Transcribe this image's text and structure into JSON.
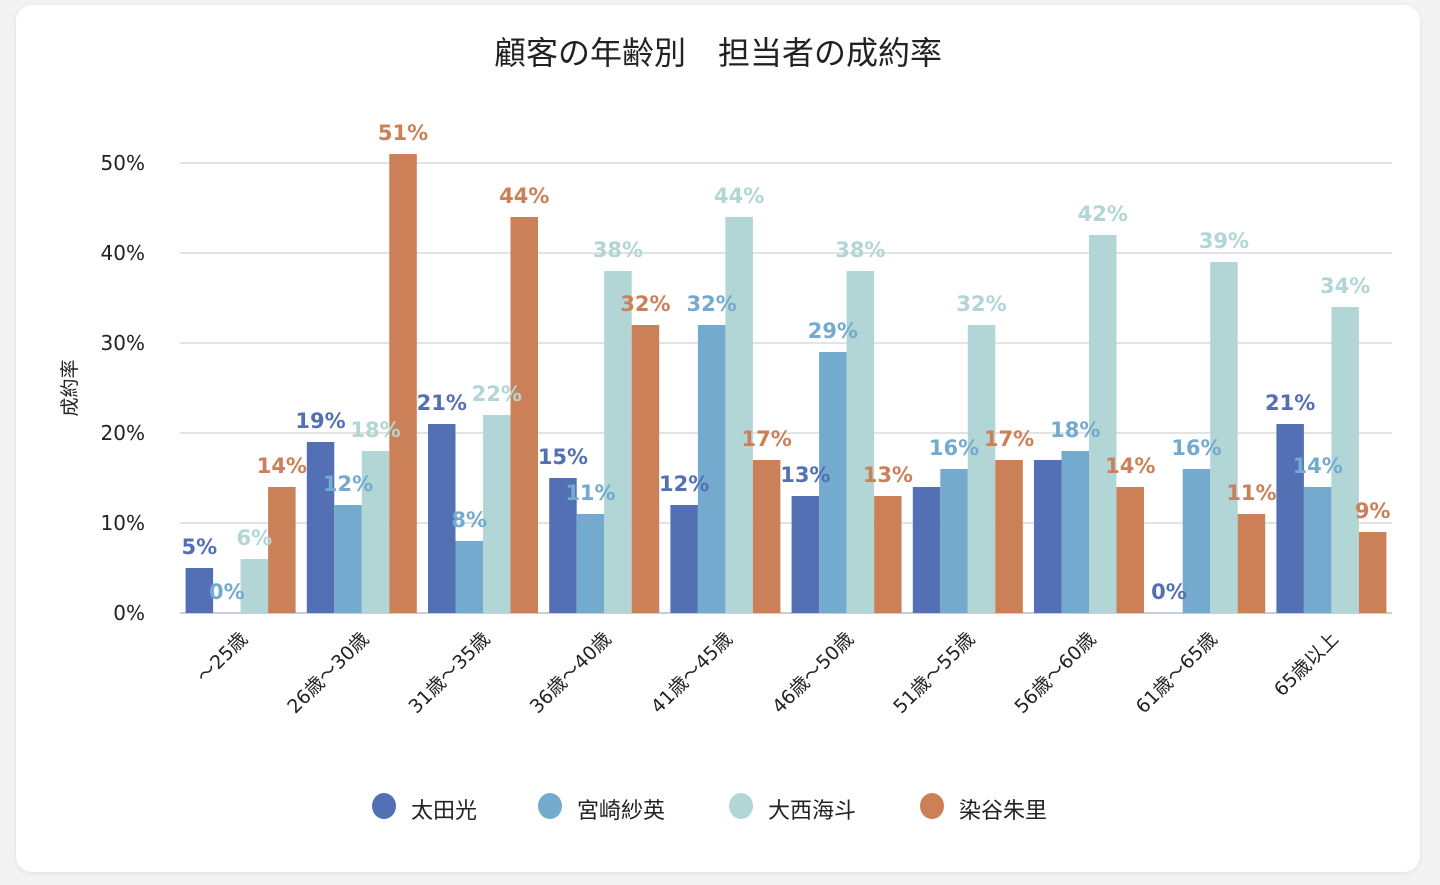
{
  "chart_data": {
    "type": "bar",
    "title": "顧客の年齢別　担当者の成約率",
    "xlabel": "",
    "ylabel": "成約率",
    "ylim": [
      0,
      55
    ],
    "yticks": [
      0,
      10,
      20,
      30,
      40,
      50
    ],
    "ytick_labels": [
      "0%",
      "10%",
      "20%",
      "30%",
      "40%",
      "50%"
    ],
    "grid": true,
    "legend_position": "bottom",
    "categories": [
      "〜25歳",
      "26歳〜30歳",
      "31歳〜35歳",
      "36歳〜40歳",
      "41歳〜45歳",
      "46歳〜50歳",
      "51歳〜55歳",
      "56歳〜60歳",
      "61歳〜65歳",
      "65歳以上"
    ],
    "series": [
      {
        "name": "太田光",
        "color": "#5470b5",
        "values": [
          5,
          19,
          21,
          15,
          12,
          13,
          14,
          17,
          0,
          21
        ],
        "labels": [
          "5%",
          "19%",
          "21%",
          "15%",
          "12%",
          "13%",
          "",
          "",
          "0%",
          "21%"
        ]
      },
      {
        "name": "宮崎紗英",
        "color": "#73aacd",
        "values": [
          0,
          12,
          8,
          11,
          32,
          29,
          16,
          18,
          16,
          14
        ],
        "labels": [
          "0%",
          "12%",
          "8%",
          "11%",
          "32%",
          "29%",
          "16%",
          "18%",
          "16%",
          "14%"
        ]
      },
      {
        "name": "大西海斗",
        "color": "#b2d5d6",
        "values": [
          6,
          18,
          22,
          38,
          44,
          38,
          32,
          42,
          39,
          34
        ],
        "labels": [
          "6%",
          "18%",
          "22%",
          "38%",
          "44%",
          "38%",
          "32%",
          "42%",
          "39%",
          "34%"
        ]
      },
      {
        "name": "染谷朱里",
        "color": "#cb8057",
        "values": [
          14,
          51,
          44,
          32,
          17,
          13,
          17,
          14,
          11,
          9
        ],
        "labels": [
          "14%",
          "51%",
          "44%",
          "32%",
          "17%",
          "13%",
          "17%",
          "14%",
          "11%",
          "9%"
        ]
      }
    ]
  }
}
